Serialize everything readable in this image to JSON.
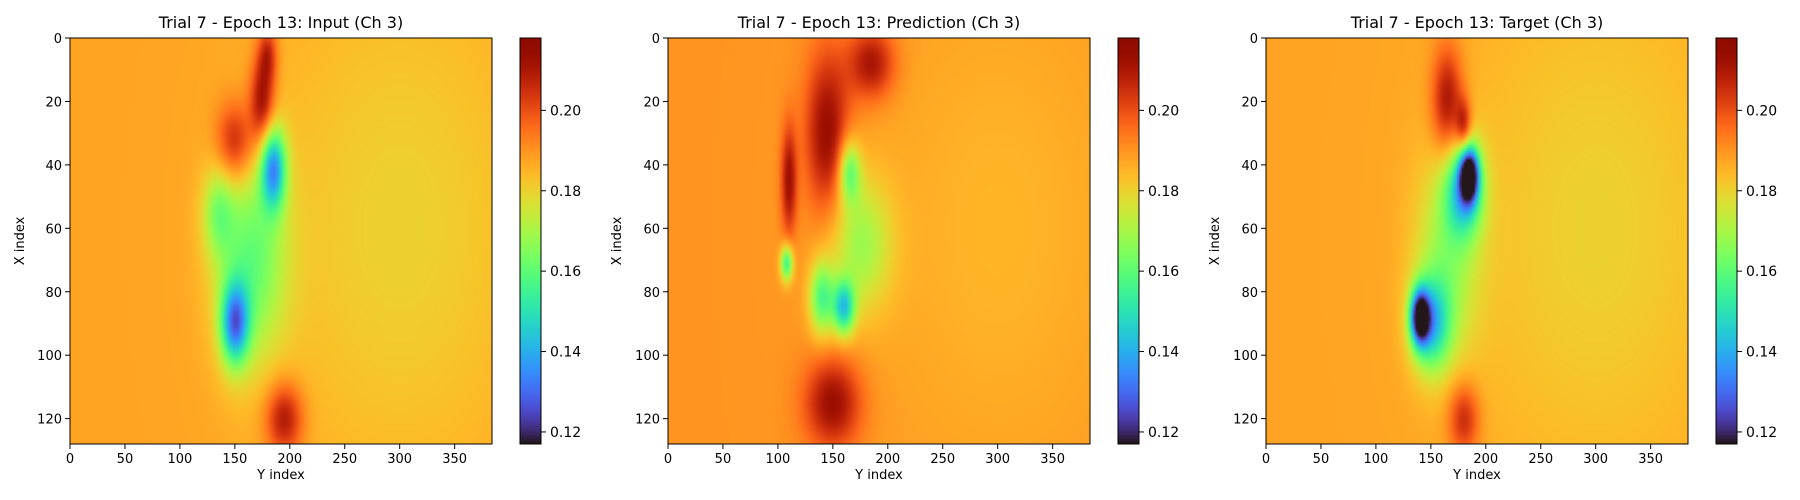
{
  "chart_data": [
    {
      "type": "heatmap",
      "title": "Trial 7 - Epoch 13: Input (Ch 3)",
      "xlabel": "Y index",
      "ylabel": "X index",
      "xlim": [
        0,
        384
      ],
      "ylim": [
        128,
        0
      ],
      "xticks": [
        0,
        50,
        100,
        150,
        200,
        250,
        300,
        350
      ],
      "yticks": [
        0,
        20,
        40,
        60,
        80,
        100,
        120
      ],
      "colormap": "turbo",
      "vmin": 0.117,
      "vmax": 0.218,
      "colorbar_ticks": [
        0.12,
        0.14,
        0.16,
        0.18,
        0.2
      ],
      "colorbar_tick_labels": [
        "0.12",
        "0.14",
        "0.16",
        "0.18",
        "0.20"
      ],
      "background_value": 0.188,
      "features": [
        {
          "x": 175,
          "y": 20,
          "sx": 8,
          "sy": 10,
          "value": 0.215
        },
        {
          "x": 150,
          "y": 33,
          "sx": 12,
          "sy": 9,
          "value": 0.21
        },
        {
          "x": 180,
          "y": 5,
          "sx": 6,
          "sy": 6,
          "value": 0.205
        },
        {
          "x": 195,
          "y": 120,
          "sx": 12,
          "sy": 8,
          "value": 0.212
        },
        {
          "x": 185,
          "y": 41,
          "sx": 8,
          "sy": 9,
          "value": 0.142
        },
        {
          "x": 150,
          "y": 90,
          "sx": 9,
          "sy": 9,
          "value": 0.14
        },
        {
          "x": 165,
          "y": 70,
          "sx": 22,
          "sy": 22,
          "value": 0.163
        },
        {
          "x": 135,
          "y": 55,
          "sx": 10,
          "sy": 10,
          "value": 0.17
        },
        {
          "x": 300,
          "y": 60,
          "sx": 90,
          "sy": 60,
          "value": 0.18
        }
      ]
    },
    {
      "type": "heatmap",
      "title": "Trial 7 - Epoch 13: Prediction (Ch 3)",
      "xlabel": "Y index",
      "ylabel": "X index",
      "xlim": [
        0,
        384
      ],
      "ylim": [
        128,
        0
      ],
      "xticks": [
        0,
        50,
        100,
        150,
        200,
        250,
        300,
        350
      ],
      "yticks": [
        0,
        20,
        40,
        60,
        80,
        100,
        120
      ],
      "colormap": "turbo",
      "vmin": 0.117,
      "vmax": 0.218,
      "colorbar_ticks": [
        0.12,
        0.14,
        0.16,
        0.18,
        0.2
      ],
      "colorbar_tick_labels": [
        "0.12",
        "0.14",
        "0.16",
        "0.18",
        "0.20"
      ],
      "background_value": 0.19,
      "features": [
        {
          "x": 145,
          "y": 30,
          "sx": 14,
          "sy": 18,
          "value": 0.215
        },
        {
          "x": 110,
          "y": 45,
          "sx": 5,
          "sy": 12,
          "value": 0.213
        },
        {
          "x": 185,
          "y": 8,
          "sx": 15,
          "sy": 8,
          "value": 0.212
        },
        {
          "x": 150,
          "y": 115,
          "sx": 18,
          "sy": 10,
          "value": 0.214
        },
        {
          "x": 165,
          "y": 42,
          "sx": 7,
          "sy": 7,
          "value": 0.162
        },
        {
          "x": 160,
          "y": 85,
          "sx": 7,
          "sy": 6,
          "value": 0.15
        },
        {
          "x": 108,
          "y": 71,
          "sx": 4,
          "sy": 4,
          "value": 0.155
        },
        {
          "x": 140,
          "y": 82,
          "sx": 8,
          "sy": 8,
          "value": 0.16
        },
        {
          "x": 175,
          "y": 65,
          "sx": 20,
          "sy": 15,
          "value": 0.17
        },
        {
          "x": 300,
          "y": 60,
          "sx": 90,
          "sy": 60,
          "value": 0.185
        }
      ]
    },
    {
      "type": "heatmap",
      "title": "Trial 7 - Epoch 13: Target (Ch 3)",
      "xlabel": "Y index",
      "ylabel": "X index",
      "xlim": [
        0,
        384
      ],
      "ylim": [
        128,
        0
      ],
      "xticks": [
        0,
        50,
        100,
        150,
        200,
        250,
        300,
        350
      ],
      "yticks": [
        0,
        20,
        40,
        60,
        80,
        100,
        120
      ],
      "colormap": "turbo",
      "vmin": 0.117,
      "vmax": 0.218,
      "colorbar_ticks": [
        0.12,
        0.14,
        0.16,
        0.18,
        0.2
      ],
      "colorbar_tick_labels": [
        "0.12",
        "0.14",
        "0.16",
        "0.18",
        "0.20"
      ],
      "background_value": 0.188,
      "features": [
        {
          "x": 165,
          "y": 20,
          "sx": 10,
          "sy": 12,
          "value": 0.213
        },
        {
          "x": 180,
          "y": 28,
          "sx": 5,
          "sy": 6,
          "value": 0.21
        },
        {
          "x": 185,
          "y": 43,
          "sx": 6,
          "sy": 6,
          "value": 0.125
        },
        {
          "x": 180,
          "y": 48,
          "sx": 12,
          "sy": 10,
          "value": 0.15
        },
        {
          "x": 140,
          "y": 88,
          "sx": 6,
          "sy": 6,
          "value": 0.125
        },
        {
          "x": 150,
          "y": 90,
          "sx": 12,
          "sy": 10,
          "value": 0.15
        },
        {
          "x": 165,
          "y": 70,
          "sx": 20,
          "sy": 22,
          "value": 0.17
        },
        {
          "x": 180,
          "y": 120,
          "sx": 10,
          "sy": 8,
          "value": 0.208
        },
        {
          "x": 300,
          "y": 60,
          "sx": 90,
          "sy": 60,
          "value": 0.18
        }
      ]
    }
  ]
}
